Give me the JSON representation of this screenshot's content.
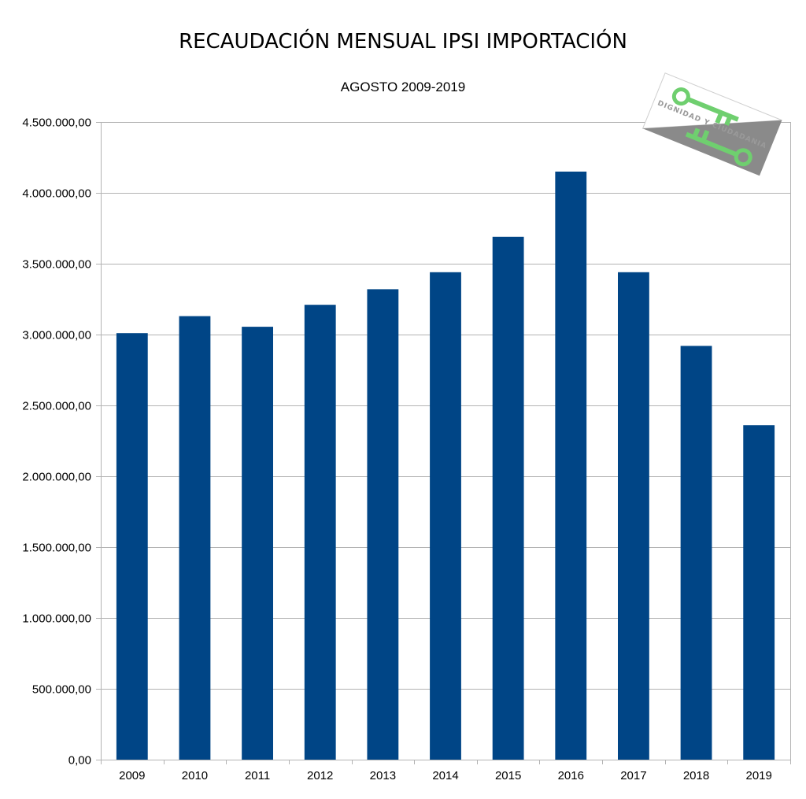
{
  "chart_data": {
    "type": "bar",
    "title": "RECAUDACIÓN MENSUAL IPSI IMPORTACIÓN",
    "subtitle": "AGOSTO 2009-2019",
    "xlabel": "",
    "ylabel": "",
    "categories": [
      "2009",
      "2010",
      "2011",
      "2012",
      "2013",
      "2014",
      "2015",
      "2016",
      "2017",
      "2018",
      "2019"
    ],
    "values": [
      3010000,
      3130000,
      3055000,
      3210000,
      3320000,
      3440000,
      3690000,
      4150000,
      3440000,
      2920000,
      2360000
    ],
    "ylim": [
      0,
      4500000
    ],
    "yticks": [
      0,
      500000,
      1000000,
      1500000,
      2000000,
      2500000,
      3000000,
      3500000,
      4000000,
      4500000
    ],
    "ytick_labels": [
      "0,00",
      "500.000,00",
      "1.000.000,00",
      "1.500.000,00",
      "2.000.000,00",
      "2.500.000,00",
      "3.000.000,00",
      "3.500.000,00",
      "4.000.000,00",
      "4.500.000,00"
    ],
    "grid": true,
    "legend": "none",
    "bar_color": "#004586",
    "watermark_text": "DIGNIDAD Y CIUDADANIA"
  }
}
